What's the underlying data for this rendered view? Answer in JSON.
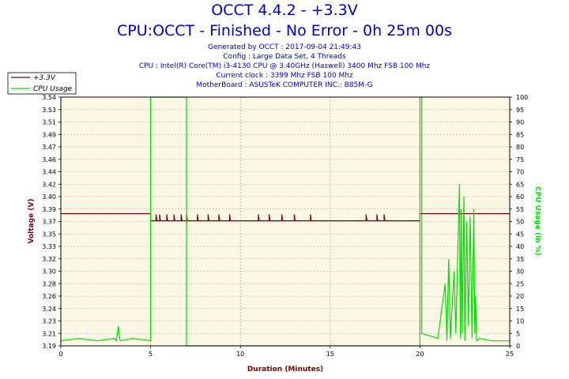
{
  "header": {
    "title_line1": "OCCT 4.4.2 - +3.3V",
    "title_line2": "CPU:OCCT - Finished - No Error - 0h 25m 00s",
    "info": [
      "Generated by OCCT : 2017-09-04 21:49:43",
      "Config : Large Data Set, 4 Threads",
      "CPU : Intel(R) Core(TM) i3-4130 CPU @ 3.40GHz (Haswell) 3400 Mhz FSB 100 Mhz",
      "Current clock : 3399 Mhz FSB 100 Mhz",
      "MotherBoard : ASUSTeK COMPUTER INC.: B85M-G"
    ]
  },
  "colors": {
    "voltage": "#800000",
    "cpu": "#00dd00",
    "plot_bg": "#fdf8e6",
    "grid": "#999999",
    "ylabel_left": "#800000",
    "ylabel_right": "#00dd00",
    "xlabel": "#800000"
  },
  "chart_data": {
    "type": "line",
    "title": "OCCT 4.4.2 - +3.3V",
    "xlabel": "Duration (Minutes)",
    "ylabel": "Voltage (V)",
    "y2label": "CPU Usage (in %)",
    "xlim": [
      0,
      25
    ],
    "ylim": [
      3.19,
      3.54
    ],
    "y2lim": [
      0,
      100
    ],
    "x_ticks": [
      0,
      5,
      10,
      15,
      20,
      25
    ],
    "y_ticks": [
      "3.19",
      "3.21",
      "3.23",
      "3.24",
      "3.26",
      "3.28",
      "3.30",
      "3.32",
      "3.33",
      "3.35",
      "3.37",
      "3.39",
      "3.40",
      "3.42",
      "3.44",
      "3.46",
      "3.47",
      "3.49",
      "3.51",
      "3.53",
      "3.54"
    ],
    "y2_ticks": [
      0,
      5,
      10,
      15,
      20,
      25,
      30,
      35,
      40,
      45,
      50,
      55,
      60,
      65,
      70,
      75,
      80,
      85,
      90,
      95,
      100
    ],
    "grid": true,
    "legend_position": "top-left",
    "series": [
      {
        "name": "+3.3V",
        "axis": "left",
        "points": [
          [
            0,
            3.376
          ],
          [
            5.0,
            3.376
          ],
          [
            5.0,
            3.366
          ],
          [
            5.3,
            3.366
          ],
          [
            5.3,
            3.375
          ],
          [
            5.35,
            3.366
          ],
          [
            5.5,
            3.366
          ],
          [
            5.5,
            3.375
          ],
          [
            5.55,
            3.366
          ],
          [
            5.9,
            3.366
          ],
          [
            5.9,
            3.375
          ],
          [
            5.95,
            3.366
          ],
          [
            6.3,
            3.366
          ],
          [
            6.3,
            3.375
          ],
          [
            6.35,
            3.366
          ],
          [
            6.7,
            3.366
          ],
          [
            6.7,
            3.375
          ],
          [
            6.75,
            3.366
          ],
          [
            7.0,
            3.366
          ],
          [
            7.0,
            3.375
          ],
          [
            7.05,
            3.366
          ],
          [
            7.6,
            3.366
          ],
          [
            7.6,
            3.375
          ],
          [
            7.65,
            3.366
          ],
          [
            8.2,
            3.366
          ],
          [
            8.2,
            3.375
          ],
          [
            8.25,
            3.366
          ],
          [
            8.8,
            3.366
          ],
          [
            8.8,
            3.375
          ],
          [
            8.85,
            3.366
          ],
          [
            9.4,
            3.366
          ],
          [
            9.4,
            3.375
          ],
          [
            9.45,
            3.366
          ],
          [
            11.0,
            3.366
          ],
          [
            11.0,
            3.375
          ],
          [
            11.05,
            3.366
          ],
          [
            11.6,
            3.366
          ],
          [
            11.6,
            3.375
          ],
          [
            11.65,
            3.366
          ],
          [
            12.3,
            3.366
          ],
          [
            12.3,
            3.375
          ],
          [
            12.35,
            3.366
          ],
          [
            13.0,
            3.366
          ],
          [
            13.0,
            3.375
          ],
          [
            13.05,
            3.366
          ],
          [
            13.9,
            3.366
          ],
          [
            13.9,
            3.375
          ],
          [
            13.95,
            3.366
          ],
          [
            17.0,
            3.366
          ],
          [
            17.0,
            3.375
          ],
          [
            17.05,
            3.366
          ],
          [
            17.6,
            3.366
          ],
          [
            17.6,
            3.375
          ],
          [
            17.65,
            3.366
          ],
          [
            18.0,
            3.366
          ],
          [
            18.0,
            3.375
          ],
          [
            18.05,
            3.366
          ],
          [
            20.0,
            3.366
          ],
          [
            20.0,
            3.376
          ],
          [
            25,
            3.376
          ]
        ]
      },
      {
        "name": "CPU Usage",
        "axis": "right",
        "points": [
          [
            0,
            2
          ],
          [
            1,
            3
          ],
          [
            2,
            2
          ],
          [
            3,
            3
          ],
          [
            3.1,
            2
          ],
          [
            3.2,
            8
          ],
          [
            3.3,
            2
          ],
          [
            4,
            3
          ],
          [
            5.0,
            2
          ],
          [
            5.0,
            100
          ],
          [
            7.0,
            100
          ],
          [
            7.0,
            0
          ],
          [
            20.0,
            0
          ],
          [
            20.0,
            100
          ],
          [
            20.1,
            100
          ],
          [
            20.1,
            5
          ],
          [
            21.0,
            3
          ],
          [
            21.4,
            25
          ],
          [
            21.5,
            2
          ],
          [
            21.6,
            35
          ],
          [
            21.7,
            3
          ],
          [
            21.9,
            30
          ],
          [
            22.0,
            5
          ],
          [
            22.2,
            65
          ],
          [
            22.25,
            3
          ],
          [
            22.3,
            55
          ],
          [
            22.35,
            5
          ],
          [
            22.45,
            60
          ],
          [
            22.5,
            2
          ],
          [
            22.6,
            50
          ],
          [
            22.7,
            8
          ],
          [
            22.8,
            52
          ],
          [
            22.9,
            3
          ],
          [
            23.0,
            55
          ],
          [
            23.05,
            5
          ],
          [
            23.1,
            20
          ],
          [
            23.15,
            2
          ],
          [
            23.3,
            3
          ],
          [
            24,
            2
          ],
          [
            25,
            2
          ]
        ]
      }
    ]
  }
}
